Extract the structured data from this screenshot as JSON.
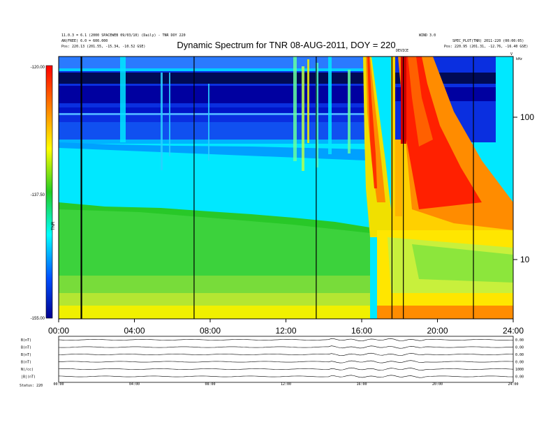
{
  "chart_data": {
    "type": "heatmap",
    "title": "Dynamic Spectrum for TNR 08-AUG-2011, DOY = 220",
    "header_left": [
      "11.0.3 = 6.1 (2000 SPACEWEB 09/03/10) (Daily) - TNR DOY 220",
      "AN(FREE) 6.0 = 600.000",
      "Pos:     220.13 (201.55, -15.34, -10.52 GSE)"
    ],
    "header_right": [
      "WIND 3.0",
      "SPEC_PLOT(TNR) 2011-220 (00:00:05)",
      "Pos:   220.95 (201.31, -12.76, -16.40 GSE)"
    ],
    "right_marks": [
      "V",
      "kHz"
    ],
    "event_label": "DEVICE",
    "x_ticks": [
      "00:00",
      "04:00",
      "08:00",
      "12:00",
      "16:00",
      "20:00",
      "24:00"
    ],
    "x_range_hours": [
      0,
      24
    ],
    "y_ticks": [
      "100",
      "10"
    ],
    "y_unit": "kHz",
    "y_scale": "log",
    "y_range_khz": [
      4,
      250
    ],
    "colorbar": {
      "ticks": [
        "-120.00",
        "-137.50",
        "-155.00"
      ],
      "range_db": [
        -155,
        -120
      ],
      "label": "TNR"
    },
    "black_lines_hours": [
      1.2,
      7.15,
      13.6,
      17.6,
      18.2,
      21.9
    ],
    "panels": [
      {
        "label": "B(nT)",
        "right": "0.00"
      },
      {
        "label": "B(nT)",
        "right": "0.00"
      },
      {
        "label": "B(nT)",
        "right": "0.00"
      },
      {
        "label": "B(nT)",
        "right": "0.00"
      },
      {
        "label": "N(/cc)",
        "right": "1000"
      },
      {
        "label": "|B|(nT)",
        "right": "0.00"
      }
    ],
    "bottom_ticks": [
      "00:00",
      "04:00",
      "08:00",
      "12:00",
      "16:00",
      "20:00",
      "24:00"
    ],
    "status": "Status:  220"
  }
}
